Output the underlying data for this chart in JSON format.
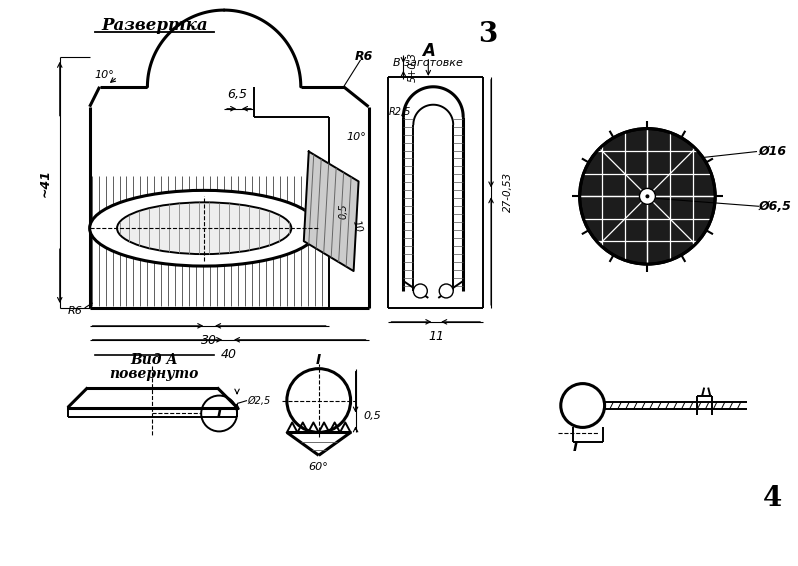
{
  "bg_color": "#ffffff",
  "title3": "3",
  "title4": "4",
  "razvyortka_label": "Развертка",
  "vid_a_label": "Вид А",
  "vid_a_label2": "повернуто",
  "label_R6": "R6",
  "label_v_zagotovke": "В заготовке",
  "label_A": "A",
  "label_41": "~41",
  "label_10deg": "10°",
  "label_65": "6,5",
  "label_30": "30",
  "label_40": "40",
  "label_R6b": "R6",
  "label_27": "27-0,53",
  "label_11": "11",
  "label_05": "0,5",
  "label_10": "10",
  "label_phi16": "Ø16",
  "label_phi65": "Ø6,5",
  "label_I": "I",
  "label_60deg": "60°",
  "label_5plus": "5+0,3",
  "label_25": "R2,5"
}
